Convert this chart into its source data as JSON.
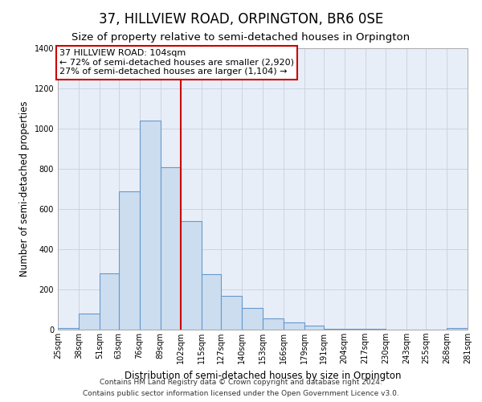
{
  "title": "37, HILLVIEW ROAD, ORPINGTON, BR6 0SE",
  "subtitle": "Size of property relative to semi-detached houses in Orpington",
  "xlabel": "Distribution of semi-detached houses by size in Orpington",
  "ylabel": "Number of semi-detached properties",
  "bin_edges": [
    25,
    38,
    51,
    63,
    76,
    89,
    102,
    115,
    127,
    140,
    153,
    166,
    179,
    191,
    204,
    217,
    230,
    243,
    255,
    268,
    281
  ],
  "bin_labels": [
    "25sqm",
    "38sqm",
    "51sqm",
    "63sqm",
    "76sqm",
    "89sqm",
    "102sqm",
    "115sqm",
    "127sqm",
    "140sqm",
    "153sqm",
    "166sqm",
    "179sqm",
    "191sqm",
    "204sqm",
    "217sqm",
    "230sqm",
    "243sqm",
    "255sqm",
    "268sqm",
    "281sqm"
  ],
  "bar_heights": [
    10,
    80,
    280,
    690,
    1040,
    810,
    540,
    275,
    170,
    110,
    55,
    35,
    20,
    5,
    5,
    3,
    2,
    2,
    0,
    8
  ],
  "bar_color": "#ccddf0",
  "bar_edge_color": "#6699cc",
  "property_line_x": 102,
  "vline_color": "#cc0000",
  "annotation_line1": "37 HILLVIEW ROAD: 104sqm",
  "annotation_line2": "← 72% of semi-detached houses are smaller (2,920)",
  "annotation_line3": "27% of semi-detached houses are larger (1,104) →",
  "box_facecolor": "#ffffff",
  "box_edgecolor": "#cc0000",
  "ylim": [
    0,
    1400
  ],
  "yticks": [
    0,
    200,
    400,
    600,
    800,
    1000,
    1200,
    1400
  ],
  "ax_facecolor": "#e8eef8",
  "grid_color": "#c8d0de",
  "footer1": "Contains HM Land Registry data © Crown copyright and database right 2024.",
  "footer2": "Contains public sector information licensed under the Open Government Licence v3.0.",
  "title_fontsize": 12,
  "subtitle_fontsize": 9.5,
  "axis_label_fontsize": 8.5,
  "tick_fontsize": 7,
  "annotation_fontsize": 8,
  "footer_fontsize": 6.5
}
